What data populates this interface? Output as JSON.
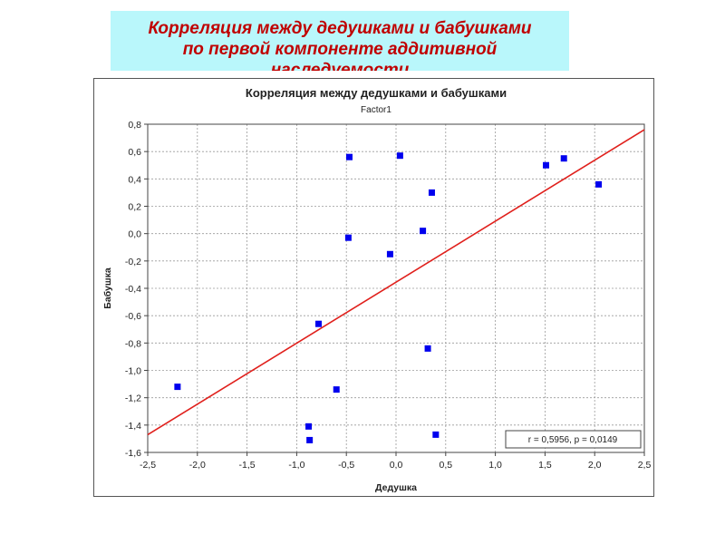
{
  "slide": {
    "title_line1": "Корреляция между дедушками и бабушками",
    "title_line2": "по первой компоненте аддитивной",
    "title_line3": "наследуемости"
  },
  "chart_data": {
    "type": "scatter",
    "title": "Корреляция между дедушками и бабушками",
    "subtitle": "Factor1",
    "xlabel": "Дедушка",
    "ylabel": "Бабушка",
    "xlim": [
      -2.5,
      2.5
    ],
    "ylim": [
      -1.6,
      0.8
    ],
    "x_ticks": [
      "-2,5",
      "-2,0",
      "-1,5",
      "-1,0",
      "-0,5",
      "0,0",
      "0,5",
      "1,0",
      "1,5",
      "2,0",
      "2,5"
    ],
    "y_ticks": [
      "0,8",
      "0,6",
      "0,4",
      "0,2",
      "0,0",
      "-0,2",
      "-0,4",
      "-0,6",
      "-0,8",
      "-1,0",
      "-1,2",
      "-1,4",
      "-1,6"
    ],
    "points": [
      {
        "x": -2.2,
        "y": -1.12
      },
      {
        "x": -0.88,
        "y": -1.41
      },
      {
        "x": -0.87,
        "y": -1.51
      },
      {
        "x": -0.6,
        "y": -1.14
      },
      {
        "x": -0.78,
        "y": -0.66
      },
      {
        "x": -0.47,
        "y": 0.56
      },
      {
        "x": -0.48,
        "y": -0.03
      },
      {
        "x": -0.06,
        "y": -0.15
      },
      {
        "x": 0.04,
        "y": 0.57
      },
      {
        "x": 0.27,
        "y": 0.02
      },
      {
        "x": 0.36,
        "y": 0.3
      },
      {
        "x": 0.32,
        "y": -0.84
      },
      {
        "x": 0.4,
        "y": -1.47
      },
      {
        "x": 1.51,
        "y": 0.5
      },
      {
        "x": 1.69,
        "y": 0.55
      },
      {
        "x": 2.04,
        "y": 0.36
      }
    ],
    "regression": {
      "x0": -2.5,
      "y0": -1.47,
      "x1": 2.5,
      "y1": 0.76
    },
    "stats": "r = 0,5956, p = 0,0149",
    "grid": true,
    "colors": {
      "points": "#0000ee",
      "line": "#e0201c",
      "grid": "#9a9a9a"
    }
  }
}
